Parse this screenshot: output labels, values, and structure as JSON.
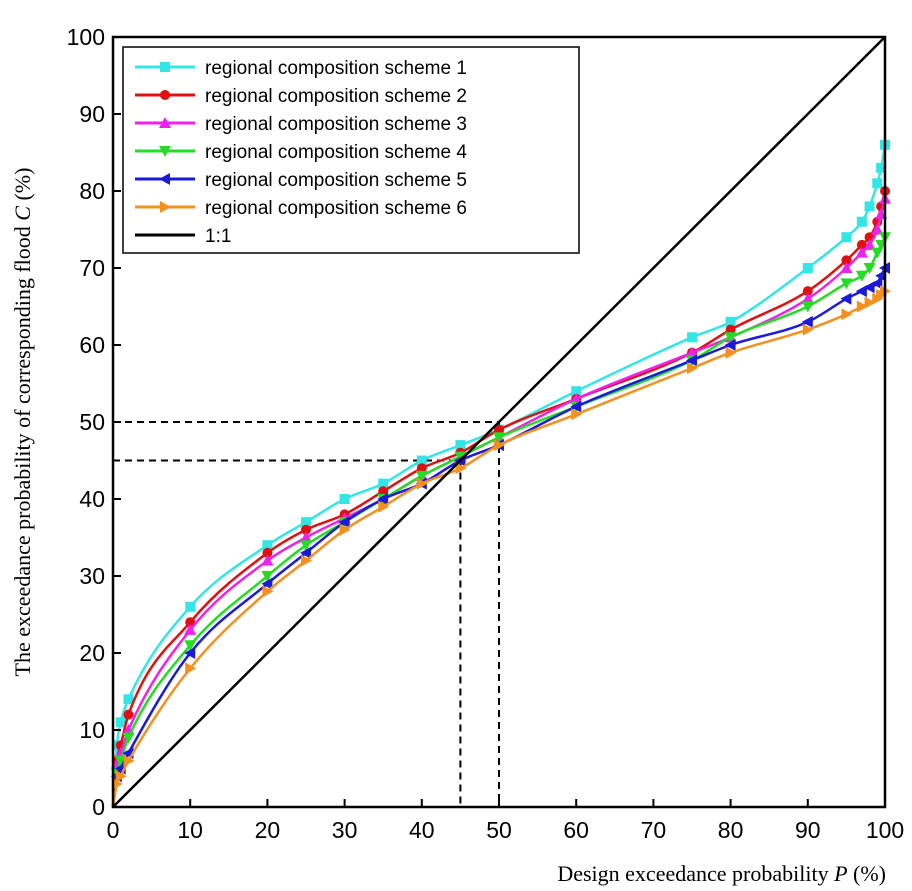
{
  "chart_data": {
    "type": "line",
    "xlabel": "Design exceedance probability P (%)",
    "ylabel": "The exceedance probability of corresponding flood C (%)",
    "xlabel_parts": {
      "pre": "Design exceedance probability ",
      "var": "P",
      "post": " (%)"
    },
    "ylabel_parts": {
      "pre": "The exceedance probability of corresponding flood ",
      "var": "C",
      "post": " (%)"
    },
    "xlim": [
      0,
      100
    ],
    "ylim": [
      0,
      100
    ],
    "xticks": [
      0,
      10,
      20,
      30,
      40,
      50,
      60,
      70,
      80,
      90,
      100
    ],
    "yticks": [
      0,
      10,
      20,
      30,
      40,
      50,
      60,
      70,
      80,
      90,
      100
    ],
    "grid": false,
    "legend_position": "top-left",
    "x": [
      0,
      0.5,
      1,
      2,
      10,
      20,
      25,
      30,
      35,
      40,
      45,
      50,
      60,
      75,
      80,
      90,
      95,
      97,
      98,
      99,
      99.5,
      100
    ],
    "series": [
      {
        "name": "regional composition scheme 1",
        "color": "#33e6e6",
        "marker": "square",
        "values": [
          0,
          8,
          11,
          14,
          26,
          34,
          37,
          40,
          42,
          45,
          47,
          49,
          54,
          61,
          63,
          70,
          74,
          76,
          78,
          81,
          83,
          86
        ]
      },
      {
        "name": "regional composition scheme 2",
        "color": "#e01010",
        "marker": "circle",
        "values": [
          0,
          6,
          8,
          12,
          24,
          33,
          36,
          38,
          41,
          44,
          46,
          49,
          53,
          59,
          62,
          67,
          71,
          73,
          74,
          76,
          78,
          80
        ]
      },
      {
        "name": "regional composition scheme 3",
        "color": "#ee22ee",
        "marker": "triangle-up",
        "values": [
          0,
          5.5,
          7,
          10,
          23,
          32,
          35,
          37.5,
          40,
          43,
          45.5,
          48,
          53,
          59,
          61,
          66,
          70,
          72,
          73,
          75,
          77,
          79
        ]
      },
      {
        "name": "regional composition scheme 4",
        "color": "#22dd22",
        "marker": "triangle-down",
        "values": [
          0,
          4.5,
          6,
          9,
          21,
          30,
          34,
          37,
          40,
          43,
          45.5,
          48,
          52,
          58,
          61,
          65,
          68,
          69,
          70,
          72,
          73,
          74
        ]
      },
      {
        "name": "regional composition scheme 5",
        "color": "#1a1ad8",
        "marker": "triangle-left",
        "values": [
          0,
          4,
          5,
          7,
          20,
          29,
          33,
          37,
          40,
          42,
          45,
          47,
          52,
          58,
          60,
          63,
          66,
          67,
          67.5,
          68,
          69,
          70
        ]
      },
      {
        "name": "regional composition scheme 6",
        "color": "#f5901e",
        "marker": "triangle-right",
        "values": [
          0,
          3,
          4,
          6,
          18,
          28,
          32,
          36,
          39,
          42,
          44,
          47,
          51,
          57,
          59,
          62,
          64,
          65,
          65.5,
          66,
          66.5,
          67
        ]
      },
      {
        "name": "1:1",
        "color": "#000000",
        "marker": "none",
        "values": [
          0,
          0.5,
          1,
          2,
          10,
          20,
          25,
          30,
          35,
          40,
          45,
          50,
          60,
          75,
          80,
          90,
          95,
          97,
          98,
          99,
          99.5,
          100
        ]
      }
    ],
    "reference_lines": [
      {
        "x": 45,
        "y": 45,
        "style": "dashed"
      },
      {
        "x": 50,
        "y": 50,
        "style": "dashed"
      }
    ]
  }
}
